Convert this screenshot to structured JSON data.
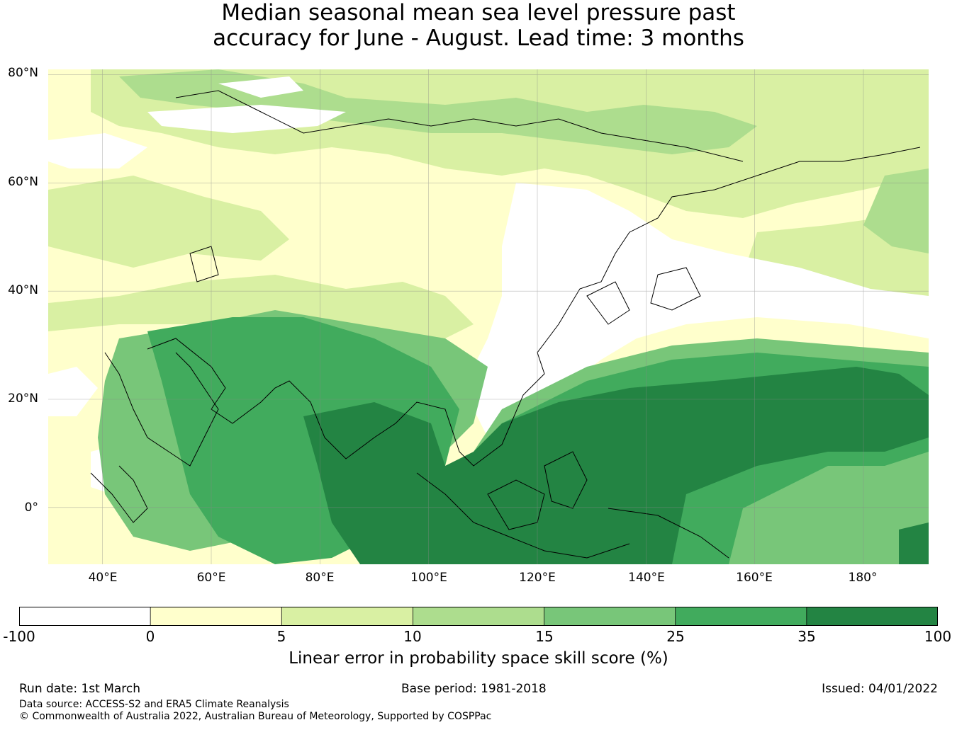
{
  "title": {
    "line1": "Median seasonal mean sea level pressure past",
    "line2": "accuracy for June - August. Lead time: 3 months"
  },
  "map": {
    "lat_labels": [
      "80°N",
      "60°N",
      "40°N",
      "20°N",
      "0°"
    ],
    "lon_labels": [
      "40°E",
      "60°E",
      "80°E",
      "100°E",
      "120°E",
      "140°E",
      "160°E",
      "180°"
    ],
    "extent": {
      "lon_min": 30,
      "lon_max": 192,
      "lat_min": -10.5,
      "lat_max": 81
    },
    "lat_grid": [
      80,
      60,
      40,
      20,
      0
    ],
    "lon_grid": [
      40,
      60,
      80,
      100,
      120,
      140,
      160,
      180
    ]
  },
  "colorbar": {
    "ticks": [
      "-100",
      "0",
      "5",
      "10",
      "15",
      "25",
      "35",
      "100"
    ],
    "colors": [
      "#ffffff",
      "#ffffcc",
      "#d9f0a3",
      "#addd8e",
      "#78c679",
      "#41ab5d",
      "#238443"
    ],
    "title": "Linear error in probability space skill score (%)"
  },
  "footer": {
    "run_date": "Run date: 1st March",
    "base_period": "Base period: 1981-2018",
    "issued": "Issued: 04/01/2022",
    "data_source": "Data source: ACCESS-S2 and ERA5 Climate Reanalysis",
    "copyright": "© Commonwealth of Australia 2022, Australian Bureau of Meteorology, Supported by COSPPac"
  }
}
